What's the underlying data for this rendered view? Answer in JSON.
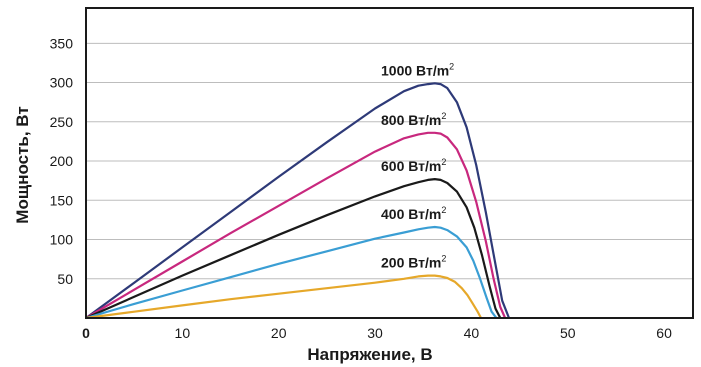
{
  "chart_data": {
    "type": "line",
    "title": "",
    "xlabel": "Напряжение, В",
    "ylabel": "Мощность, Вт",
    "xlim": [
      0,
      63
    ],
    "ylim": [
      0,
      395
    ],
    "x_ticks": [
      0,
      10,
      20,
      30,
      40,
      50,
      60
    ],
    "y_ticks": [
      50,
      100,
      150,
      200,
      250,
      300,
      350
    ],
    "grid": "horizontal",
    "series": [
      {
        "label": "1000 Вт/m",
        "unit_sup": "2",
        "color": "#2e3a78",
        "x": [
          0,
          5,
          10,
          15,
          20,
          25,
          30,
          33,
          34.5,
          35.5,
          36.2,
          36.8,
          37.5,
          38.5,
          39.5,
          40.5,
          41.5,
          42.5,
          43.2,
          43.9
        ],
        "y": [
          0,
          45,
          90,
          135,
          180,
          224,
          267,
          289,
          296,
          298,
          299,
          298,
          293,
          275,
          243,
          195,
          135,
          68,
          22,
          0
        ]
      },
      {
        "label": "800 Вт/m",
        "unit_sup": "2",
        "color": "#c8287e",
        "x": [
          0,
          5,
          10,
          15,
          20,
          25,
          30,
          33,
          34.5,
          35.5,
          36.2,
          36.8,
          37.5,
          38.5,
          39.5,
          40.5,
          41.5,
          42.3,
          43.0,
          43.5
        ],
        "y": [
          0,
          36,
          72,
          108,
          143,
          178,
          212,
          229,
          234,
          236,
          236,
          235,
          230,
          215,
          188,
          148,
          98,
          50,
          14,
          0
        ]
      },
      {
        "label": "600 Вт/m",
        "unit_sup": "2",
        "color": "#1a1a1a",
        "x": [
          0,
          5,
          10,
          15,
          20,
          25,
          30,
          33,
          34.5,
          35.5,
          36.2,
          36.8,
          37.5,
          38.5,
          39.5,
          40.3,
          41.1,
          41.9,
          42.5,
          43.0
        ],
        "y": [
          0,
          27,
          54,
          80,
          106,
          131,
          155,
          168,
          173,
          176,
          177,
          176,
          172,
          161,
          141,
          115,
          80,
          40,
          12,
          0
        ]
      },
      {
        "label": "400 Вт/m",
        "unit_sup": "2",
        "color": "#3a9ed4",
        "x": [
          0,
          5,
          10,
          15,
          20,
          25,
          30,
          33,
          34.5,
          35.5,
          36.2,
          36.8,
          37.5,
          38.5,
          39.5,
          40.2,
          40.9,
          41.6,
          42.1,
          42.6
        ],
        "y": [
          0,
          18,
          35,
          52,
          69,
          85,
          101,
          109,
          113,
          115,
          116,
          115,
          112,
          104,
          90,
          73,
          50,
          25,
          8,
          0
        ]
      },
      {
        "label": "200 Вт/m",
        "unit_sup": "2",
        "color": "#e6a82a",
        "x": [
          0,
          5,
          10,
          15,
          20,
          25,
          30,
          33,
          34.5,
          35.5,
          36.2,
          36.8,
          37.5,
          38.3,
          39.0,
          39.6,
          40.1,
          40.6,
          41.0
        ],
        "y": [
          0,
          8,
          16,
          24,
          31,
          38,
          45,
          50,
          53,
          54,
          54,
          53,
          51,
          46,
          38,
          29,
          19,
          9,
          0
        ]
      }
    ]
  }
}
